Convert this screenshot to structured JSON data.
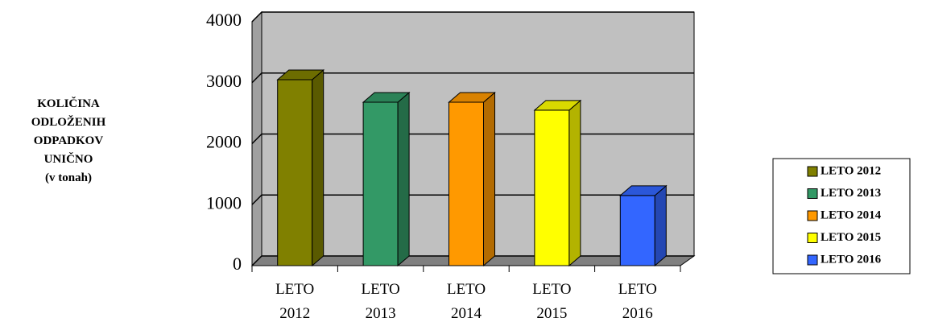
{
  "chart_data": {
    "type": "bar3d",
    "y_label": [
      "KOLIČINA",
      "ODLOŽENIH",
      "ODPADKOV",
      "UNIČNO",
      "(v tonah)"
    ],
    "categories": [
      "LETO 2012",
      "LETO 2013",
      "LETO 2014",
      "LETO 2015",
      "LETO 2016"
    ],
    "values": [
      3050,
      2680,
      2680,
      2550,
      1150
    ],
    "colors": [
      "#808000",
      "#339966",
      "#ff9900",
      "#ffff00",
      "#3366ff"
    ],
    "ylim": [
      0,
      4000
    ],
    "yticks": [
      0,
      1000,
      2000,
      3000,
      4000
    ],
    "grid": true,
    "legend": "right"
  }
}
